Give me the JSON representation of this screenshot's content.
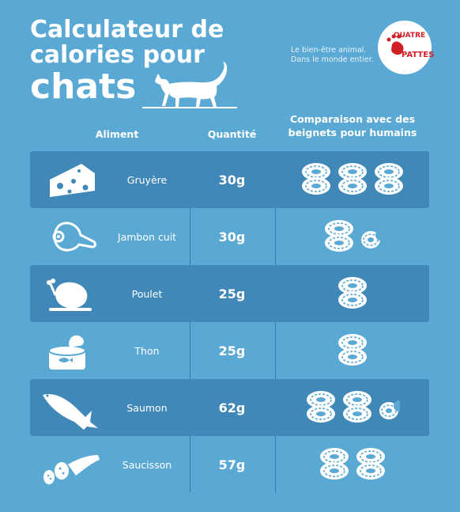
{
  "title": {
    "line1": "Calculateur de",
    "line2": "calories pour",
    "line3": "chats"
  },
  "tagline": {
    "line1": "Le bien-être animal.",
    "line2": "Dans le monde entier."
  },
  "logo": {
    "line1": "QUATRE",
    "line2": "PATTES"
  },
  "columns": {
    "food": "Aliment",
    "quantity": "Quantité",
    "comparison_line1": "Comparaison avec des",
    "comparison_line2": "beignets pour humains"
  },
  "rows": [
    {
      "name": "Gruyère",
      "quantity": "30g",
      "icon": "cheese-icon",
      "donuts": 3,
      "bite": false
    },
    {
      "name": "Jambon cuit",
      "quantity": "30g",
      "icon": "ham-icon",
      "donuts": 1,
      "bite": true
    },
    {
      "name": "Poulet",
      "quantity": "25g",
      "icon": "chicken-icon",
      "donuts": 1,
      "bite": false
    },
    {
      "name": "Thon",
      "quantity": "25g",
      "icon": "tuna-can-icon",
      "donuts": 1,
      "bite": false
    },
    {
      "name": "Saumon",
      "quantity": "62g",
      "icon": "salmon-icon",
      "donuts": 2.5,
      "bite": false
    },
    {
      "name": "Saucisson",
      "quantity": "57g",
      "icon": "sausage-icon",
      "donuts": 2,
      "bite": false
    }
  ],
  "colors": {
    "background": "#5aa9d4",
    "row_dark": "#4088b8",
    "logo_red": "#d21f26"
  }
}
